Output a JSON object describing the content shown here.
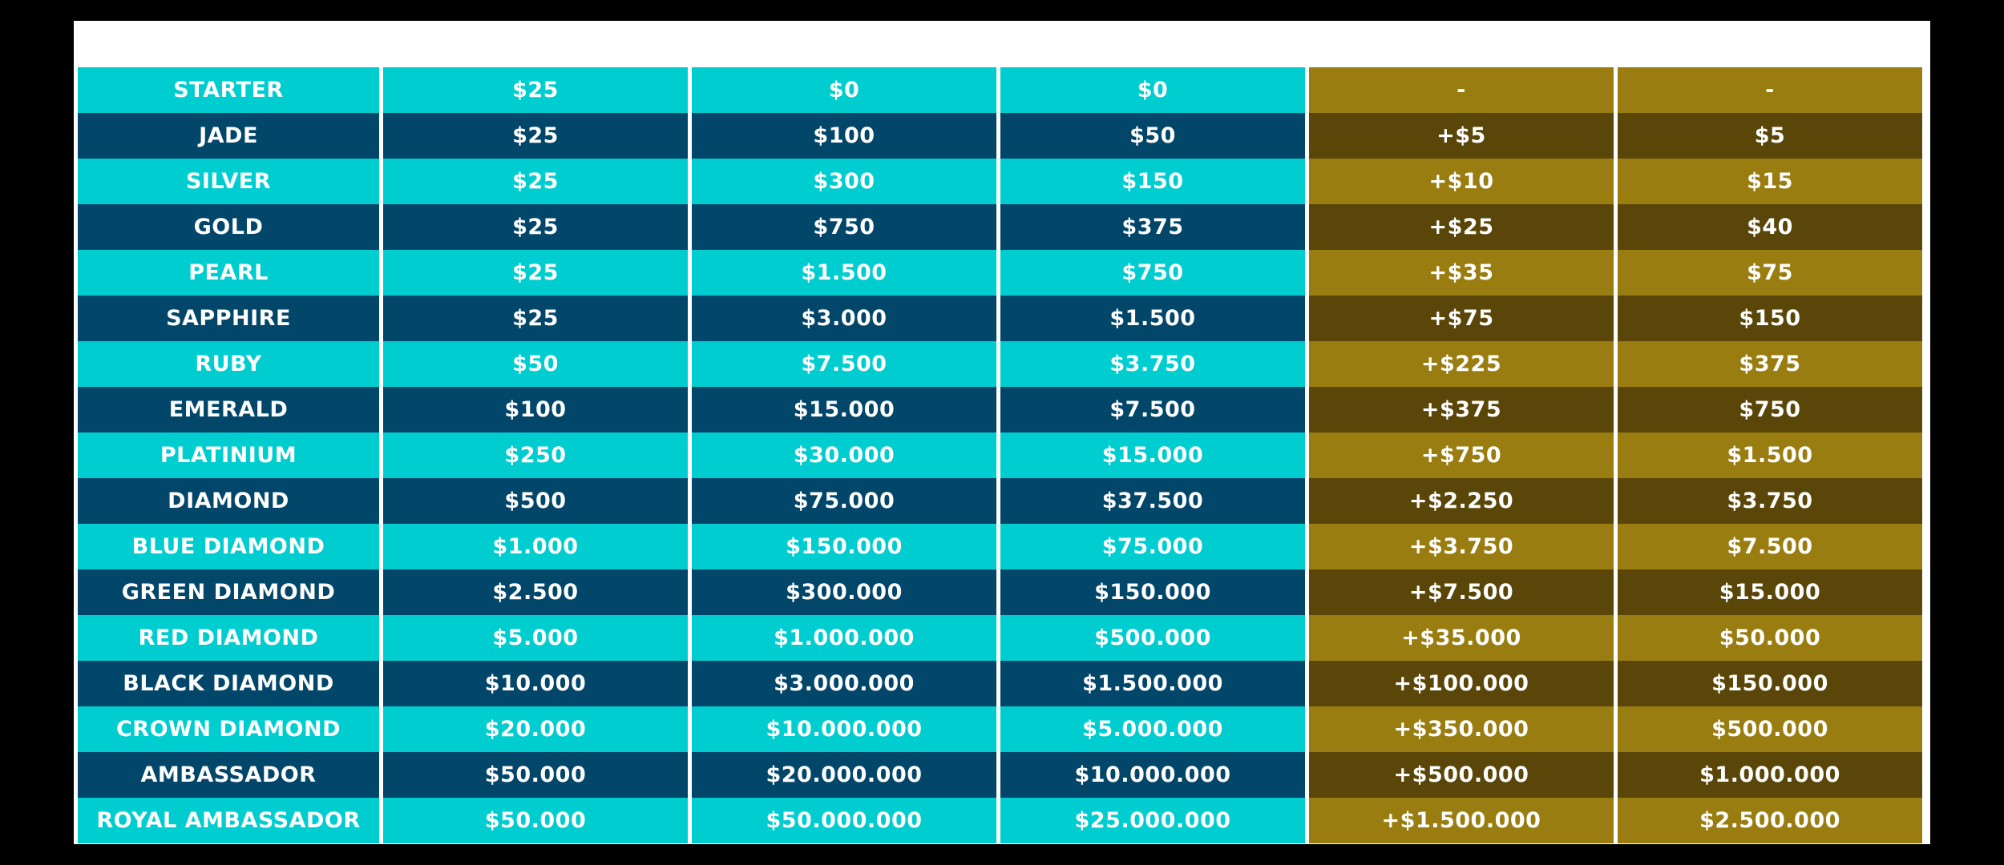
{
  "rows": [
    {
      "rank": "STARTER",
      "c1": "$25",
      "c2": "$0",
      "c3": "$0",
      "c4": "-",
      "c5": "-"
    },
    {
      "rank": "JADE",
      "c1": "$25",
      "c2": "$100",
      "c3": "$50",
      "c4": "+$5",
      "c5": "$5"
    },
    {
      "rank": "SILVER",
      "c1": "$25",
      "c2": "$300",
      "c3": "$150",
      "c4": "+$10",
      "c5": "$15"
    },
    {
      "rank": "GOLD",
      "c1": "$25",
      "c2": "$750",
      "c3": "$375",
      "c4": "+$25",
      "c5": "$40"
    },
    {
      "rank": "PEARL",
      "c1": "$25",
      "c2": "$1.500",
      "c3": "$750",
      "c4": "+$35",
      "c5": "$75"
    },
    {
      "rank": "SAPPHIRE",
      "c1": "$25",
      "c2": "$3.000",
      "c3": "$1.500",
      "c4": "+$75",
      "c5": "$150"
    },
    {
      "rank": "RUBY",
      "c1": "$50",
      "c2": "$7.500",
      "c3": "$3.750",
      "c4": "+$225",
      "c5": "$375"
    },
    {
      "rank": "EMERALD",
      "c1": "$100",
      "c2": "$15.000",
      "c3": "$7.500",
      "c4": "+$375",
      "c5": "$750"
    },
    {
      "rank": "PLATINIUM",
      "c1": "$250",
      "c2": "$30.000",
      "c3": "$15.000",
      "c4": "+$750",
      "c5": "$1.500"
    },
    {
      "rank": "DIAMOND",
      "c1": "$500",
      "c2": "$75.000",
      "c3": "$37.500",
      "c4": "+$2.250",
      "c5": "$3.750"
    },
    {
      "rank": "BLUE DIAMOND",
      "c1": "$1.000",
      "c2": "$150.000",
      "c3": "$75.000",
      "c4": "+$3.750",
      "c5": "$7.500"
    },
    {
      "rank": "GREEN DIAMOND",
      "c1": "$2.500",
      "c2": "$300.000",
      "c3": "$150.000",
      "c4": "+$7.500",
      "c5": "$15.000"
    },
    {
      "rank": "RED DIAMOND",
      "c1": "$5.000",
      "c2": "$1.000.000",
      "c3": "$500.000",
      "c4": "+$35.000",
      "c5": "$50.000"
    },
    {
      "rank": "BLACK DIAMOND",
      "c1": "$10.000",
      "c2": "$3.000.000",
      "c3": "$1.500.000",
      "c4": "+$100.000",
      "c5": "$150.000"
    },
    {
      "rank": "CROWN DIAMOND",
      "c1": "$20.000",
      "c2": "$10.000.000",
      "c3": "$5.000.000",
      "c4": "+$350.000",
      "c5": "$500.000"
    },
    {
      "rank": "AMBASSADOR",
      "c1": "$50.000",
      "c2": "$20.000.000",
      "c3": "$10.000.000",
      "c4": "+$500.000",
      "c5": "$1.000.000"
    },
    {
      "rank": "ROYAL AMBASSADOR",
      "c1": "$50.000",
      "c2": "$50.000.000",
      "c3": "$25.000.000",
      "c4": "+$1.500.000",
      "c5": "$2.500.000"
    }
  ],
  "colors": {
    "teal_light": "#00cdd0",
    "teal_dark": "#02466a",
    "olive_light": "#9a7d10",
    "olive_dark": "#5a4608",
    "text": "#ffffff"
  }
}
